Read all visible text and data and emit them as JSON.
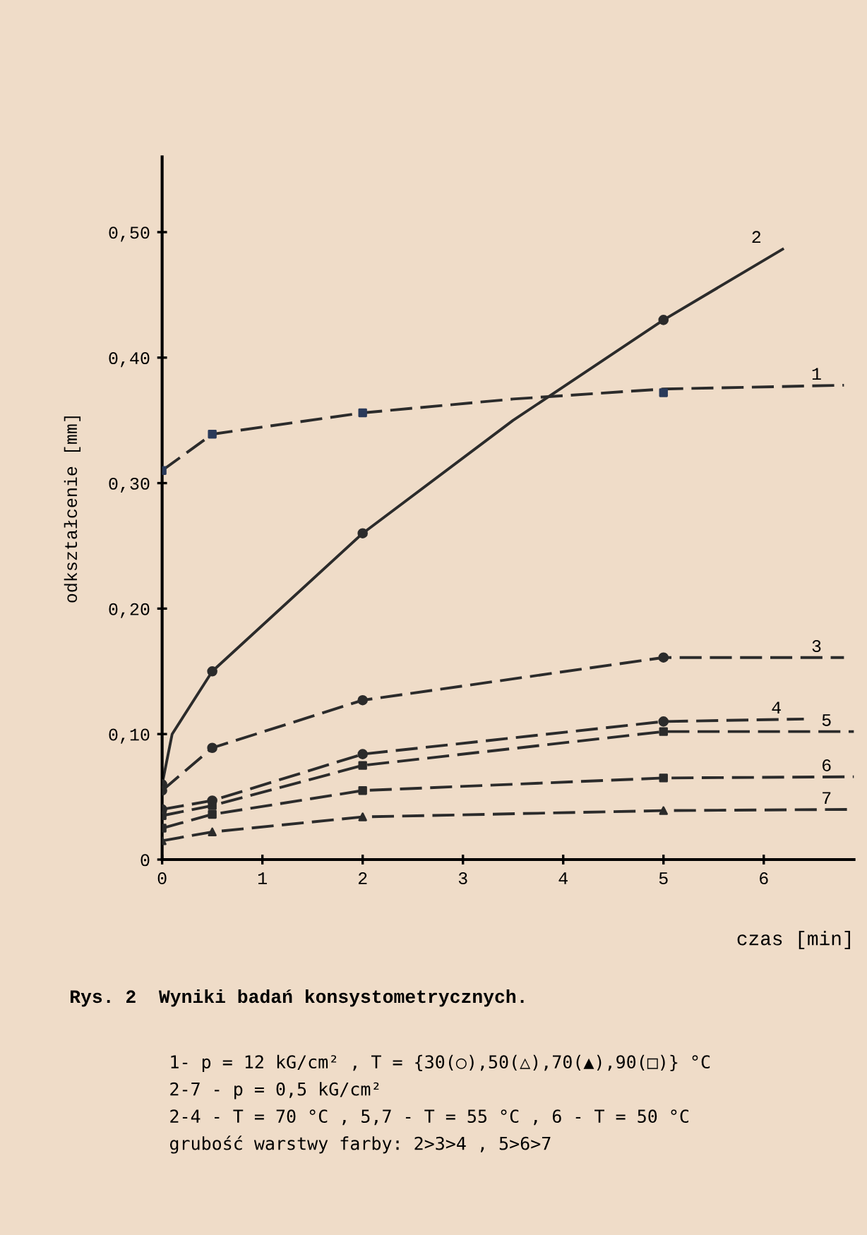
{
  "chart_data": {
    "type": "line",
    "title": "Rys. 2  Wyniki badań konsystometrycznych.",
    "xlabel": "czas [min]",
    "ylabel": "odkształcenie [mm]",
    "xlim": [
      0,
      6.9
    ],
    "xticks": [
      0,
      1,
      2,
      3,
      4,
      5,
      6
    ],
    "ylim": [
      0,
      0.56
    ],
    "yticks": [
      {
        "value": 0,
        "label": "0"
      },
      {
        "value": 0.1,
        "label": "0,10"
      },
      {
        "value": 0.2,
        "label": "0,20"
      },
      {
        "value": 0.3,
        "label": "0,30"
      },
      {
        "value": 0.4,
        "label": "0,40"
      },
      {
        "value": 0.5,
        "label": "0,50"
      }
    ],
    "grid": false,
    "legend": false,
    "series": [
      {
        "name": "1",
        "color": "#2b2b2b",
        "line_style": "dashed",
        "x": [
          0,
          0.5,
          2,
          3.5,
          5,
          6.8
        ],
        "values": [
          0.31,
          0.339,
          0.356,
          0.367,
          0.375,
          0.378
        ]
      },
      {
        "name": "2",
        "color": "#2b2b2b",
        "line_style": "solid",
        "x": [
          0,
          0.1,
          0.5,
          2,
          3.5,
          5,
          6.2
        ],
        "values": [
          0.06,
          0.1,
          0.15,
          0.26,
          0.35,
          0.43,
          0.487
        ]
      },
      {
        "name": "3",
        "color": "#2b2b2b",
        "line_style": "dashed",
        "x": [
          0,
          0.5,
          2,
          5,
          6.8
        ],
        "values": [
          0.055,
          0.089,
          0.127,
          0.161,
          0.161
        ]
      },
      {
        "name": "4",
        "color": "#2b2b2b",
        "line_style": "dashed",
        "x": [
          0,
          0.5,
          2,
          5,
          6.4
        ],
        "values": [
          0.04,
          0.047,
          0.084,
          0.11,
          0.112
        ]
      },
      {
        "name": "5",
        "color": "#2b2b2b",
        "line_style": "dashed",
        "x": [
          0,
          0.5,
          2,
          5,
          6.9
        ],
        "values": [
          0.035,
          0.043,
          0.075,
          0.102,
          0.102
        ]
      },
      {
        "name": "6",
        "color": "#2b2b2b",
        "line_style": "dashed",
        "x": [
          0,
          0.5,
          2,
          5,
          6.9
        ],
        "values": [
          0.025,
          0.036,
          0.055,
          0.065,
          0.066
        ]
      },
      {
        "name": "7",
        "color": "#2b2b2b",
        "line_style": "dashed",
        "x": [
          0,
          0.5,
          2,
          5,
          6.9
        ],
        "values": [
          0.015,
          0.022,
          0.034,
          0.039,
          0.04
        ]
      },
      {
        "type": "scatter",
        "color": "#2a3a5a",
        "marker": "square",
        "x": [
          0,
          0.5,
          2,
          5
        ],
        "values": [
          0.31,
          0.339,
          0.356,
          0.372
        ]
      },
      {
        "type": "scatter",
        "color": "#2b2b2b",
        "marker": "circle",
        "x": [
          0,
          0.5,
          2,
          5
        ],
        "values": [
          0.06,
          0.15,
          0.26,
          0.43
        ]
      },
      {
        "type": "scatter",
        "color": "#2b2b2b",
        "marker": "circle",
        "x": [
          0,
          0.5,
          2,
          5
        ],
        "values": [
          0.055,
          0.089,
          0.127,
          0.161
        ]
      },
      {
        "type": "scatter",
        "color": "#2b2b2b",
        "marker": "circle",
        "x": [
          0,
          0.5,
          2,
          5
        ],
        "values": [
          0.04,
          0.047,
          0.084,
          0.11
        ]
      },
      {
        "type": "scatter",
        "color": "#2b2b2b",
        "marker": "square",
        "x": [
          0,
          0.5,
          2,
          5
        ],
        "values": [
          0.035,
          0.043,
          0.075,
          0.102
        ]
      },
      {
        "type": "scatter",
        "color": "#2b2b2b",
        "marker": "square",
        "x": [
          0,
          0.5,
          2,
          5
        ],
        "values": [
          0.025,
          0.036,
          0.055,
          0.065
        ]
      },
      {
        "type": "scatter",
        "color": "#2b2b2b",
        "marker": "triangle",
        "x": [
          0,
          0.5,
          2,
          5
        ],
        "values": [
          0.015,
          0.022,
          0.034,
          0.039
        ]
      }
    ],
    "annotations": [
      "1- p = 12 kG/cm² , T = {30(○),50(△),70(▲),90(□)} °C",
      "2-7 - p = 0,5 kG/cm²",
      "2-4 - T = 70 °C , 5,7 - T = 55 °C , 6 - T = 50 °C",
      "grubość warstwy farby: 2>3>4 , 5>6>7"
    ]
  }
}
